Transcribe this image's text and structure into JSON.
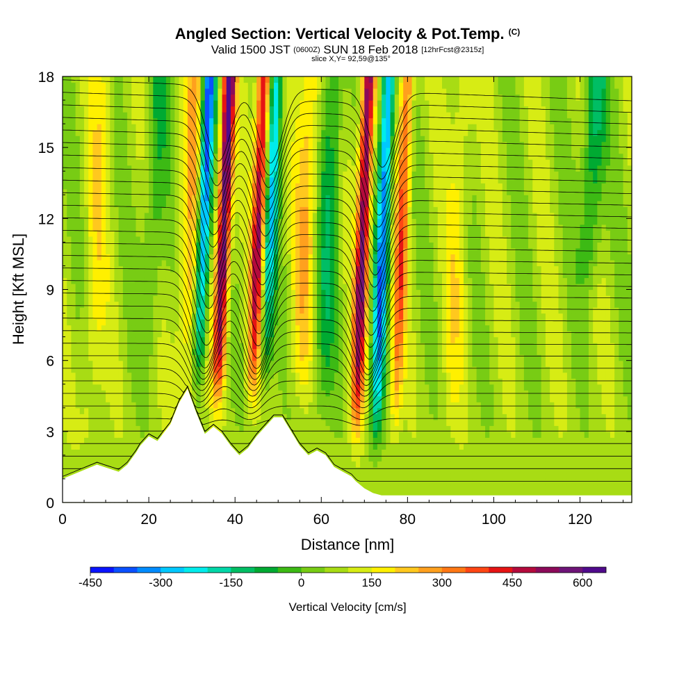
{
  "header": {
    "title": "Angled Section: Vertical Velocity & Pot.Temp.",
    "title_unit": "(C)",
    "valid_prefix": "Valid 1500 JST",
    "valid_utc": "(0600Z)",
    "valid_date": "SUN 18 Feb 2018",
    "forecast": "[12hrFcst@2315z]",
    "slice": "slice X,Y= 92,59@135°"
  },
  "colorbar": {
    "label": "Vertical Velocity [cm/s]",
    "tick_labels": [
      "-450",
      "-300",
      "-150",
      "0",
      "150",
      "300",
      "450",
      "600"
    ],
    "colors": [
      "#0a14ff",
      "#0a50ff",
      "#008cff",
      "#00c8ff",
      "#00ecec",
      "#00d7a8",
      "#00be64",
      "#00aa32",
      "#3cba14",
      "#78cc14",
      "#a8dc14",
      "#d7ec14",
      "#fff000",
      "#ffc81e",
      "#ffa01e",
      "#ff7814",
      "#ff4614",
      "#e61414",
      "#b40a3c",
      "#8c0a5a",
      "#6e1478",
      "#500a8c"
    ]
  },
  "chart_data": {
    "type": "heatmap",
    "title": "Angled Section: Vertical Velocity & Pot.Temp.",
    "xlabel": "Distance [nm]",
    "ylabel": "Height [Kft MSL]",
    "xlim": [
      0,
      132
    ],
    "ylim": [
      0,
      18
    ],
    "x_ticks": [
      "0",
      "20",
      "40",
      "60",
      "80",
      "100",
      "120"
    ],
    "y_ticks": [
      "0",
      "3",
      "6",
      "9",
      "12",
      "15",
      "18"
    ],
    "vertical_velocity_features": [
      {
        "x": 31.5,
        "peak": -480,
        "base_height": 5.5
      },
      {
        "x": 36.0,
        "peak": 560,
        "base_height": 4.5
      },
      {
        "x": 44.0,
        "peak": 420,
        "base_height": 4.5
      },
      {
        "x": 47.0,
        "peak": -300,
        "base_height": 5.0
      },
      {
        "x": 55.0,
        "peak": 160,
        "base_height": 4.5
      },
      {
        "x": 60.0,
        "peak": -150,
        "base_height": 3.5
      },
      {
        "x": 68.0,
        "peak": 500,
        "base_height": 3.0
      },
      {
        "x": 72.5,
        "peak": -420,
        "base_height": 2.5
      },
      {
        "x": 77.0,
        "peak": 280,
        "base_height": 3.0
      },
      {
        "x": 20.0,
        "peak": -120,
        "base_height": 6.0
      },
      {
        "x": 122.0,
        "peak": -200,
        "base_height": 9.0
      },
      {
        "x": 28.0,
        "peak": 160,
        "base_height": 3.0
      },
      {
        "x": 6.0,
        "peak": 90,
        "base_height": 2.0
      },
      {
        "x": 90.0,
        "peak": 90,
        "base_height": 3.0
      }
    ],
    "terrain_profile": {
      "x": [
        0,
        4,
        8,
        13,
        15,
        17,
        18,
        19,
        20,
        22,
        25,
        27,
        29,
        31,
        33,
        35,
        37,
        39,
        41,
        43,
        45,
        47,
        49,
        51,
        53,
        55,
        57,
        59,
        61,
        63,
        65,
        67,
        68,
        70,
        72,
        74,
        132
      ],
      "height": [
        1.0,
        1.3,
        1.6,
        1.3,
        1.6,
        2.1,
        2.4,
        2.6,
        2.8,
        2.6,
        3.3,
        4.2,
        4.8,
        3.8,
        2.9,
        3.2,
        2.9,
        2.4,
        2.0,
        2.3,
        2.8,
        3.2,
        3.6,
        3.6,
        3.0,
        2.4,
        2.0,
        2.2,
        2.0,
        1.5,
        1.3,
        1.1,
        0.9,
        0.6,
        0.4,
        0.3,
        0.3
      ]
    },
    "isentrope_count": 33
  }
}
